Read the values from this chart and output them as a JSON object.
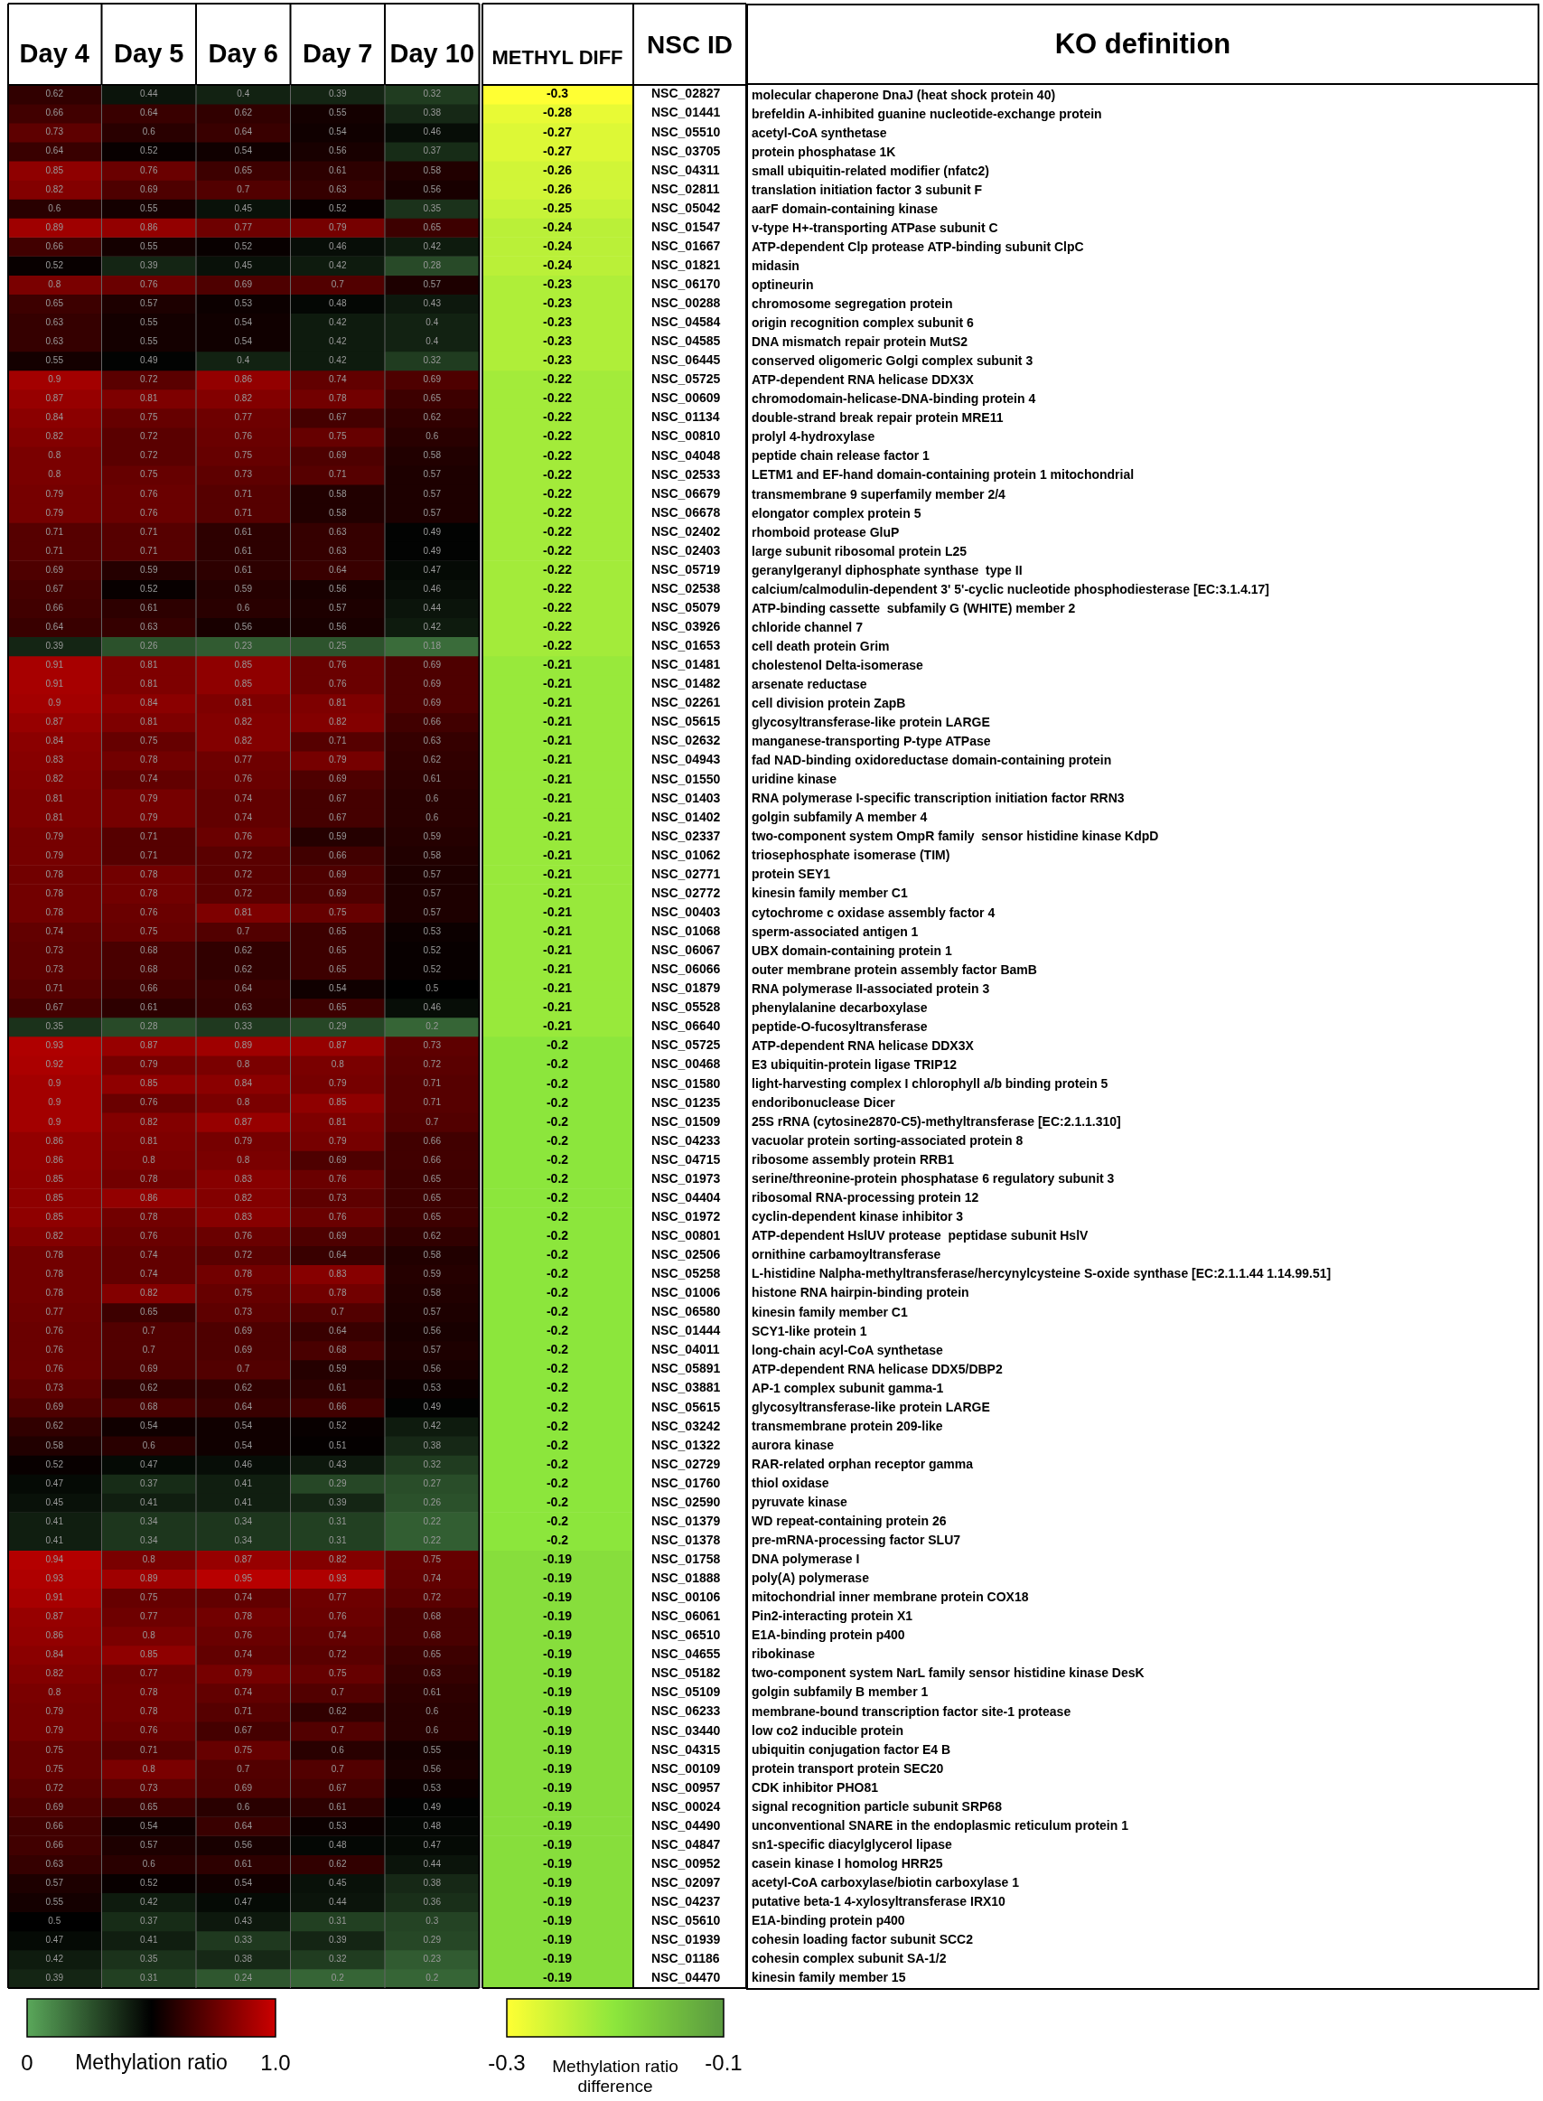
{
  "chart_data": [
    {
      "type": "heatmap",
      "categories": [
        "Day 4",
        "Day 5",
        "Day 6",
        "Day 7",
        "Day 10"
      ],
      "y_categories": [
        null,
        null,
        null,
        null,
        null,
        null,
        null,
        null,
        null,
        null,
        null,
        null,
        null,
        null,
        null,
        null,
        null,
        null,
        null,
        null,
        null,
        null,
        null,
        null,
        null,
        null,
        null,
        null,
        null,
        null,
        null,
        null,
        null,
        null,
        null,
        null,
        null,
        null,
        null,
        null,
        null,
        null,
        null,
        null,
        null,
        null,
        null,
        null,
        null,
        null,
        null,
        null,
        null,
        null,
        null,
        null,
        null,
        null,
        null,
        null,
        null,
        null,
        null,
        null,
        null,
        null,
        null,
        null,
        null,
        null,
        null,
        null,
        null,
        null,
        null,
        null,
        null,
        null,
        null,
        null,
        null,
        null,
        null,
        null,
        null,
        null,
        null,
        null,
        null,
        null,
        null,
        null,
        null,
        null,
        null,
        null,
        null,
        null,
        null,
        null
      ],
      "clim": [
        0,
        1
      ],
      "cticks": [
        0,
        {
          "value": 1,
          "label": "1.0"
        }
      ],
      "clabel": "Methylation ratio",
      "data_labels": true,
      "cells": [
        [
          0.62,
          0.44,
          0.4,
          0.39,
          0.32
        ],
        [
          0.66,
          0.64,
          0.62,
          0.55,
          0.38
        ],
        [
          0.73,
          0.6,
          0.64,
          0.54,
          0.46
        ],
        [
          0.64,
          0.52,
          0.54,
          0.56,
          0.37
        ],
        [
          0.85,
          0.76,
          0.65,
          0.61,
          0.58
        ],
        [
          0.82,
          0.69,
          0.7,
          0.63,
          0.56
        ],
        [
          0.6,
          0.55,
          0.45,
          0.52,
          0.35
        ],
        [
          0.89,
          0.86,
          0.77,
          0.79,
          0.65
        ],
        [
          0.66,
          0.55,
          0.52,
          0.46,
          0.42
        ],
        [
          0.52,
          0.39,
          0.45,
          0.42,
          0.28
        ],
        [
          0.8,
          0.76,
          0.69,
          0.7,
          0.57
        ],
        [
          0.65,
          0.57,
          0.53,
          0.48,
          0.43
        ],
        [
          0.63,
          0.55,
          0.54,
          0.42,
          0.4
        ],
        [
          0.63,
          0.55,
          0.54,
          0.42,
          0.4
        ],
        [
          0.55,
          0.49,
          0.4,
          0.42,
          0.32
        ],
        [
          0.9,
          0.72,
          0.86,
          0.74,
          0.69
        ],
        [
          0.87,
          0.81,
          0.82,
          0.78,
          0.65
        ],
        [
          0.84,
          0.75,
          0.77,
          0.67,
          0.62
        ],
        [
          0.82,
          0.72,
          0.76,
          0.75,
          0.6
        ],
        [
          0.8,
          0.72,
          0.75,
          0.69,
          0.58
        ],
        [
          0.8,
          0.75,
          0.73,
          0.71,
          0.57
        ],
        [
          0.79,
          0.76,
          0.71,
          0.58,
          0.57
        ],
        [
          0.79,
          0.76,
          0.71,
          0.58,
          0.57
        ],
        [
          0.71,
          0.71,
          0.61,
          0.63,
          0.49
        ],
        [
          0.71,
          0.71,
          0.61,
          0.63,
          0.49
        ],
        [
          0.69,
          0.59,
          0.61,
          0.64,
          0.47
        ],
        [
          0.67,
          0.52,
          0.59,
          0.56,
          0.46
        ],
        [
          0.66,
          0.61,
          0.6,
          0.57,
          0.44
        ],
        [
          0.64,
          0.63,
          0.56,
          0.56,
          0.42
        ],
        [
          0.39,
          0.26,
          0.23,
          0.25,
          0.18
        ],
        [
          0.91,
          0.81,
          0.85,
          0.76,
          0.69
        ],
        [
          0.91,
          0.81,
          0.85,
          0.76,
          0.69
        ],
        [
          0.9,
          0.84,
          0.81,
          0.81,
          0.69
        ],
        [
          0.87,
          0.81,
          0.82,
          0.82,
          0.66
        ],
        [
          0.84,
          0.75,
          0.82,
          0.71,
          0.63
        ],
        [
          0.83,
          0.78,
          0.77,
          0.79,
          0.62
        ],
        [
          0.82,
          0.74,
          0.76,
          0.69,
          0.61
        ],
        [
          0.81,
          0.79,
          0.74,
          0.67,
          0.6
        ],
        [
          0.81,
          0.79,
          0.74,
          0.67,
          0.6
        ],
        [
          0.79,
          0.71,
          0.76,
          0.59,
          0.59
        ],
        [
          0.79,
          0.71,
          0.72,
          0.66,
          0.58
        ],
        [
          0.78,
          0.78,
          0.72,
          0.69,
          0.57
        ],
        [
          0.78,
          0.78,
          0.72,
          0.69,
          0.57
        ],
        [
          0.78,
          0.76,
          0.81,
          0.75,
          0.57
        ],
        [
          0.74,
          0.75,
          0.7,
          0.65,
          0.53
        ],
        [
          0.73,
          0.68,
          0.62,
          0.65,
          0.52
        ],
        [
          0.73,
          0.68,
          0.62,
          0.65,
          0.52
        ],
        [
          0.71,
          0.66,
          0.64,
          0.54,
          0.5
        ],
        [
          0.67,
          0.61,
          0.63,
          0.65,
          0.46
        ],
        [
          0.35,
          0.28,
          0.33,
          0.29,
          0.2
        ],
        [
          0.93,
          0.87,
          0.89,
          0.87,
          0.73
        ],
        [
          0.92,
          0.79,
          0.8,
          0.8,
          0.72
        ],
        [
          0.9,
          0.85,
          0.84,
          0.79,
          0.71
        ],
        [
          0.9,
          0.76,
          0.8,
          0.85,
          0.71
        ],
        [
          0.9,
          0.82,
          0.87,
          0.81,
          0.7
        ],
        [
          0.86,
          0.81,
          0.79,
          0.79,
          0.66
        ],
        [
          0.86,
          0.8,
          0.8,
          0.69,
          0.66
        ],
        [
          0.85,
          0.78,
          0.83,
          0.76,
          0.65
        ],
        [
          0.85,
          0.86,
          0.82,
          0.73,
          0.65
        ],
        [
          0.85,
          0.78,
          0.83,
          0.76,
          0.65
        ],
        [
          0.82,
          0.76,
          0.76,
          0.69,
          0.62
        ],
        [
          0.78,
          0.74,
          0.72,
          0.64,
          0.58
        ],
        [
          0.78,
          0.74,
          0.78,
          0.83,
          0.59
        ],
        [
          0.78,
          0.82,
          0.75,
          0.78,
          0.58
        ],
        [
          0.77,
          0.65,
          0.73,
          0.7,
          0.57
        ],
        [
          0.76,
          0.7,
          0.69,
          0.64,
          0.56
        ],
        [
          0.76,
          0.7,
          0.69,
          0.68,
          0.57
        ],
        [
          0.76,
          0.69,
          0.7,
          0.59,
          0.56
        ],
        [
          0.73,
          0.62,
          0.62,
          0.61,
          0.53
        ],
        [
          0.69,
          0.68,
          0.64,
          0.66,
          0.49
        ],
        [
          0.62,
          0.54,
          0.54,
          0.52,
          0.42
        ],
        [
          0.58,
          0.6,
          0.54,
          0.51,
          0.38
        ],
        [
          0.52,
          0.47,
          0.46,
          0.43,
          0.32
        ],
        [
          0.47,
          0.37,
          0.41,
          0.29,
          0.27
        ],
        [
          0.45,
          0.41,
          0.41,
          0.39,
          0.26
        ],
        [
          0.41,
          0.34,
          0.34,
          0.31,
          0.22
        ],
        [
          0.41,
          0.34,
          0.34,
          0.31,
          0.22
        ],
        [
          0.94,
          0.8,
          0.87,
          0.82,
          0.75
        ],
        [
          0.93,
          0.89,
          0.95,
          0.93,
          0.74
        ],
        [
          0.91,
          0.75,
          0.74,
          0.77,
          0.72
        ],
        [
          0.87,
          0.77,
          0.78,
          0.76,
          0.68
        ],
        [
          0.86,
          0.8,
          0.76,
          0.74,
          0.68
        ],
        [
          0.84,
          0.85,
          0.74,
          0.72,
          0.65
        ],
        [
          0.82,
          0.77,
          0.79,
          0.75,
          0.63
        ],
        [
          0.8,
          0.78,
          0.74,
          0.7,
          0.61
        ],
        [
          0.79,
          0.78,
          0.71,
          0.62,
          0.6
        ],
        [
          0.79,
          0.76,
          0.67,
          0.7,
          0.6
        ],
        [
          0.75,
          0.71,
          0.75,
          0.6,
          0.55
        ],
        [
          0.75,
          0.8,
          0.7,
          0.7,
          0.56
        ],
        [
          0.72,
          0.73,
          0.69,
          0.67,
          0.53
        ],
        [
          0.69,
          0.65,
          0.6,
          0.61,
          0.49
        ],
        [
          0.66,
          0.54,
          0.64,
          0.53,
          0.48
        ],
        [
          0.66,
          0.57,
          0.56,
          0.48,
          0.47
        ],
        [
          0.63,
          0.6,
          0.61,
          0.62,
          0.44
        ],
        [
          0.57,
          0.52,
          0.54,
          0.45,
          0.38
        ],
        [
          0.55,
          0.42,
          0.47,
          0.44,
          0.36
        ],
        [
          0.5,
          0.37,
          0.43,
          0.31,
          0.3
        ],
        [
          0.47,
          0.41,
          0.33,
          0.39,
          0.29
        ],
        [
          0.42,
          0.35,
          0.38,
          0.32,
          0.23
        ],
        [
          0.39,
          0.31,
          0.24,
          0.2,
          0.2
        ]
      ]
    },
    {
      "type": "heatmap",
      "categories": [
        "METHYL DIFF"
      ],
      "y2label": "NSC ID",
      "clim": [
        -0.3,
        -0.1
      ],
      "cticks": [
        -0.3,
        -0.1
      ],
      "clabel": "Methylation ratio difference",
      "data_labels": true,
      "y_categories": [
        "NSC_02827",
        "NSC_01441",
        "NSC_05510",
        "NSC_03705",
        "NSC_04311",
        "NSC_02811",
        "NSC_05042",
        "NSC_01547",
        "NSC_01667",
        "NSC_01821",
        "NSC_06170",
        "NSC_00288",
        "NSC_04584",
        "NSC_04585",
        "NSC_06445",
        "NSC_05725",
        "NSC_00609",
        "NSC_01134",
        "NSC_00810",
        "NSC_04048",
        "NSC_02533",
        "NSC_06679",
        "NSC_06678",
        "NSC_02402",
        "NSC_02403",
        "NSC_05719",
        "NSC_02538",
        "NSC_05079",
        "NSC_03926",
        "NSC_01653",
        "NSC_01481",
        "NSC_01482",
        "NSC_02261",
        "NSC_05615",
        "NSC_02632",
        "NSC_04943",
        "NSC_01550",
        "NSC_01403",
        "NSC_01402",
        "NSC_02337",
        "NSC_01062",
        "NSC_02771",
        "NSC_02772",
        "NSC_00403",
        "NSC_01068",
        "NSC_06067",
        "NSC_06066",
        "NSC_01879",
        "NSC_05528",
        "NSC_06640",
        "NSC_05725",
        "NSC_00468",
        "NSC_01580",
        "NSC_01235",
        "NSC_01509",
        "NSC_04233",
        "NSC_04715",
        "NSC_01973",
        "NSC_04404",
        "NSC_01972",
        "NSC_00801",
        "NSC_02506",
        "NSC_05258",
        "NSC_01006",
        "NSC_06580",
        "NSC_01444",
        "NSC_04011",
        "NSC_05891",
        "NSC_03881",
        "NSC_05615",
        "NSC_03242",
        "NSC_01322",
        "NSC_02729",
        "NSC_01760",
        "NSC_02590",
        "NSC_01379",
        "NSC_01378",
        "NSC_01758",
        "NSC_01888",
        "NSC_00106",
        "NSC_06061",
        "NSC_06510",
        "NSC_04655",
        "NSC_05182",
        "NSC_05109",
        "NSC_06233",
        "NSC_03440",
        "NSC_04315",
        "NSC_00109",
        "NSC_00957",
        "NSC_00024",
        "NSC_04490",
        "NSC_04847",
        "NSC_00952",
        "NSC_02097",
        "NSC_04237",
        "NSC_05610",
        "NSC_01939",
        "NSC_01186",
        "NSC_04470"
      ],
      "cells": [
        [
          -0.3
        ],
        [
          -0.28
        ],
        [
          -0.27
        ],
        [
          -0.27
        ],
        [
          -0.26
        ],
        [
          -0.26
        ],
        [
          -0.25
        ],
        [
          -0.24
        ],
        [
          -0.24
        ],
        [
          -0.24
        ],
        [
          -0.23
        ],
        [
          -0.23
        ],
        [
          -0.23
        ],
        [
          -0.23
        ],
        [
          -0.23
        ],
        [
          -0.22
        ],
        [
          -0.22
        ],
        [
          -0.22
        ],
        [
          -0.22
        ],
        [
          -0.22
        ],
        [
          -0.22
        ],
        [
          -0.22
        ],
        [
          -0.22
        ],
        [
          -0.22
        ],
        [
          -0.22
        ],
        [
          -0.22
        ],
        [
          -0.22
        ],
        [
          -0.22
        ],
        [
          -0.22
        ],
        [
          -0.22
        ],
        [
          -0.21
        ],
        [
          -0.21
        ],
        [
          -0.21
        ],
        [
          -0.21
        ],
        [
          -0.21
        ],
        [
          -0.21
        ],
        [
          -0.21
        ],
        [
          -0.21
        ],
        [
          -0.21
        ],
        [
          -0.21
        ],
        [
          -0.21
        ],
        [
          -0.21
        ],
        [
          -0.21
        ],
        [
          -0.21
        ],
        [
          -0.21
        ],
        [
          -0.21
        ],
        [
          -0.21
        ],
        [
          -0.21
        ],
        [
          -0.21
        ],
        [
          -0.21
        ],
        [
          -0.2
        ],
        [
          -0.2
        ],
        [
          -0.2
        ],
        [
          -0.2
        ],
        [
          -0.2
        ],
        [
          -0.2
        ],
        [
          -0.2
        ],
        [
          -0.2
        ],
        [
          -0.2
        ],
        [
          -0.2
        ],
        [
          -0.2
        ],
        [
          -0.2
        ],
        [
          -0.2
        ],
        [
          -0.2
        ],
        [
          -0.2
        ],
        [
          -0.2
        ],
        [
          -0.2
        ],
        [
          -0.2
        ],
        [
          -0.2
        ],
        [
          -0.2
        ],
        [
          -0.2
        ],
        [
          -0.2
        ],
        [
          -0.2
        ],
        [
          -0.2
        ],
        [
          -0.2
        ],
        [
          -0.2
        ],
        [
          -0.2
        ],
        [
          -0.19
        ],
        [
          -0.19
        ],
        [
          -0.19
        ],
        [
          -0.19
        ],
        [
          -0.19
        ],
        [
          -0.19
        ],
        [
          -0.19
        ],
        [
          -0.19
        ],
        [
          -0.19
        ],
        [
          -0.19
        ],
        [
          -0.19
        ],
        [
          -0.19
        ],
        [
          -0.19
        ],
        [
          -0.19
        ],
        [
          -0.19
        ],
        [
          -0.19
        ],
        [
          -0.19
        ],
        [
          -0.19
        ],
        [
          -0.19
        ],
        [
          -0.19
        ],
        [
          -0.19
        ],
        [
          -0.19
        ],
        [
          -0.19
        ]
      ]
    },
    {
      "type": "other",
      "title": "KO definition",
      "annotations": [
        "molecular chaperone DnaJ (heat shock protein 40)",
        "brefeldin A-inhibited guanine nucleotide-exchange protein",
        "acetyl-CoA synthetase",
        "protein phosphatase 1K",
        "small ubiquitin-related modifier (nfatc2)",
        "translation initiation factor 3 subunit F",
        "aarF domain-containing kinase",
        "v-type H+-transporting ATPase subunit C",
        "ATP-dependent Clp protease ATP-binding subunit ClpC",
        "midasin",
        "optineurin",
        "chromosome segregation protein",
        "origin recognition complex subunit 6",
        "DNA mismatch repair protein MutS2",
        "conserved oligomeric Golgi complex subunit 3",
        "ATP-dependent RNA helicase DDX3X",
        "chromodomain-helicase-DNA-binding protein 4",
        "double-strand break repair protein MRE11",
        "prolyl 4-hydroxylase",
        "peptide chain release factor 1",
        "LETM1 and EF-hand domain-containing protein 1 mitochondrial",
        "transmembrane 9 superfamily member 2/4",
        "elongator complex protein 5",
        "rhomboid protease GluP",
        "large subunit ribosomal protein L25",
        "geranylgeranyl diphosphate synthase  type II",
        "calcium/calmodulin-dependent 3' 5'-cyclic nucleotide phosphodiesterase [EC:3.1.4.17]",
        "ATP-binding cassette  subfamily G (WHITE) member 2",
        "chloride channel 7",
        "cell death protein Grim",
        "cholestenol Delta-isomerase",
        "arsenate reductase",
        "cell division protein ZapB",
        "glycosyltransferase-like protein LARGE",
        "manganese-transporting P-type ATPase",
        "fad NAD-binding oxidoreductase domain-containing protein",
        "uridine kinase",
        "RNA polymerase I-specific transcription initiation factor RRN3",
        "golgin subfamily A member 4",
        "two-component system OmpR family  sensor histidine kinase KdpD",
        "triosephosphate isomerase (TIM)",
        "protein SEY1",
        "kinesin family member C1",
        "cytochrome c oxidase assembly factor 4",
        "sperm-associated antigen 1",
        "UBX domain-containing protein 1",
        "outer membrane protein assembly factor BamB",
        "RNA polymerase II-associated protein 3",
        "phenylalanine decarboxylase",
        "peptide-O-fucosyltransferase",
        "ATP-dependent RNA helicase DDX3X",
        "E3 ubiquitin-protein ligase TRIP12",
        "light-harvesting complex I chlorophyll a/b binding protein 5",
        "endoribonuclease Dicer",
        "25S rRNA (cytosine2870-C5)-methyltransferase [EC:2.1.1.310]",
        "vacuolar protein sorting-associated protein 8",
        "ribosome assembly protein RRB1",
        "serine/threonine-protein phosphatase 6 regulatory subunit 3",
        "ribosomal RNA-processing protein 12",
        "cyclin-dependent kinase inhibitor 3",
        "ATP-dependent HslUV protease  peptidase subunit HslV",
        "ornithine carbamoyltransferase",
        "L-histidine Nalpha-methyltransferase/hercynylcysteine S-oxide synthase [EC:2.1.1.44 1.14.99.51]",
        "histone RNA hairpin-binding protein",
        "kinesin family member C1",
        "SCY1-like protein 1",
        "long-chain acyl-CoA synthetase",
        "ATP-dependent RNA helicase DDX5/DBP2",
        "AP-1 complex subunit gamma-1",
        "glycosyltransferase-like protein LARGE",
        "transmembrane protein 209-like",
        "aurora kinase",
        "RAR-related orphan receptor gamma",
        "thiol oxidase",
        "pyruvate kinase",
        "WD repeat-containing protein 26",
        "pre-mRNA-processing factor SLU7",
        "DNA polymerase I",
        "poly(A) polymerase",
        "mitochondrial inner membrane protein COX18",
        "Pin2-interacting protein X1",
        "E1A-binding protein p400",
        "ribokinase",
        "two-component system NarL family sensor histidine kinase DesK",
        "golgin subfamily B member 1",
        "membrane-bound transcription factor site-1 protease",
        "low co2 inducible protein",
        "ubiquitin conjugation factor E4 B",
        "protein transport protein SEC20",
        "CDK inhibitor PHO81",
        "signal recognition particle subunit SRP68",
        "unconventional SNARE in the endoplasmic reticulum protein 1",
        "sn1-specific diacylglycerol lipase",
        "casein kinase I homolog HRR25",
        "acetyl-CoA carboxylase/biotin carboxylase 1",
        "putative beta-1 4-xylosyltransferase IRX10",
        "E1A-binding protein p400",
        "cohesin loading factor subunit SCC2",
        "cohesin complex subunit SA-1/2",
        "kinesin family member 15"
      ]
    }
  ]
}
